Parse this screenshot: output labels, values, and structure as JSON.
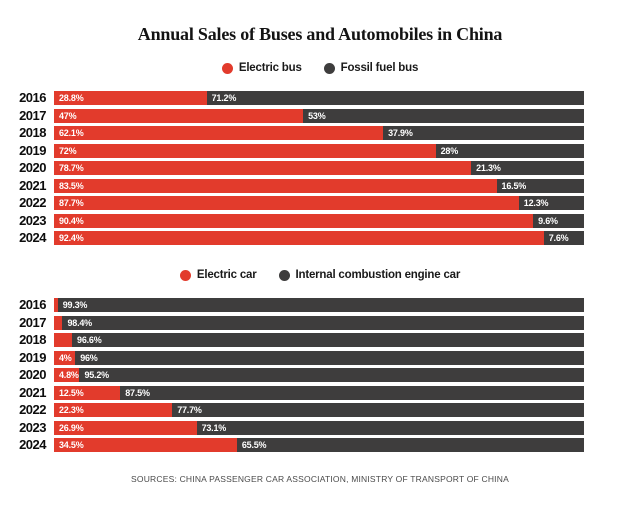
{
  "title": "Annual Sales of Buses and Automobiles in China",
  "footer": "SOURCES: CHINA PASSENGER CAR ASSOCIATION, MINISTRY OF TRANSPORT OF CHINA",
  "colors": {
    "electric": "#e23b2c",
    "conventional": "#3e3d3d",
    "background": "#ffffff",
    "label_text": "#ffffff"
  },
  "chart_data": [
    {
      "type": "bar",
      "subtype": "horizontal-stacked-100pct",
      "title": "",
      "legend_position": "top-center",
      "grid": false,
      "xlim": [
        0,
        100
      ],
      "categories": [
        "2016",
        "2017",
        "2018",
        "2019",
        "2020",
        "2021",
        "2022",
        "2023",
        "2024"
      ],
      "series": [
        {
          "name": "Electric bus",
          "color_key": "electric",
          "values": [
            28.8,
            47,
            62.1,
            72,
            78.7,
            83.5,
            87.7,
            90.4,
            92.4
          ],
          "labels": [
            "28.8%",
            "47%",
            "62.1%",
            "72%",
            "78.7%",
            "83.5%",
            "87.7%",
            "90.4%",
            "92.4%"
          ]
        },
        {
          "name": "Fossil fuel bus",
          "color_key": "conventional",
          "values": [
            71.2,
            53,
            37.9,
            28,
            21.3,
            16.5,
            12.3,
            9.6,
            7.6
          ],
          "labels": [
            "71.2%",
            "53%",
            "37.9%",
            "28%",
            "21.3%",
            "16.5%",
            "12.3%",
            "9.6%",
            "7.6%"
          ]
        }
      ]
    },
    {
      "type": "bar",
      "subtype": "horizontal-stacked-100pct",
      "title": "",
      "legend_position": "top-center",
      "grid": false,
      "xlim": [
        0,
        100
      ],
      "categories": [
        "2016",
        "2017",
        "2018",
        "2019",
        "2020",
        "2021",
        "2022",
        "2023",
        "2024"
      ],
      "series": [
        {
          "name": "Electric car",
          "color_key": "electric",
          "values": [
            0.7,
            1.6,
            3.4,
            4,
            4.8,
            12.5,
            22.3,
            26.9,
            34.5
          ],
          "labels": [
            null,
            null,
            null,
            "4%",
            "4.8%",
            "12.5%",
            "22.3%",
            "26.9%",
            "34.5%"
          ]
        },
        {
          "name": "Internal combustion engine car",
          "color_key": "conventional",
          "values": [
            99.3,
            98.4,
            96.6,
            96,
            95.2,
            87.5,
            77.7,
            73.1,
            65.5
          ],
          "labels": [
            "99.3%",
            "98.4%",
            "96.6%",
            "96%",
            "95.2%",
            "87.5%",
            "77.7%",
            "73.1%",
            "65.5%"
          ]
        }
      ]
    }
  ]
}
